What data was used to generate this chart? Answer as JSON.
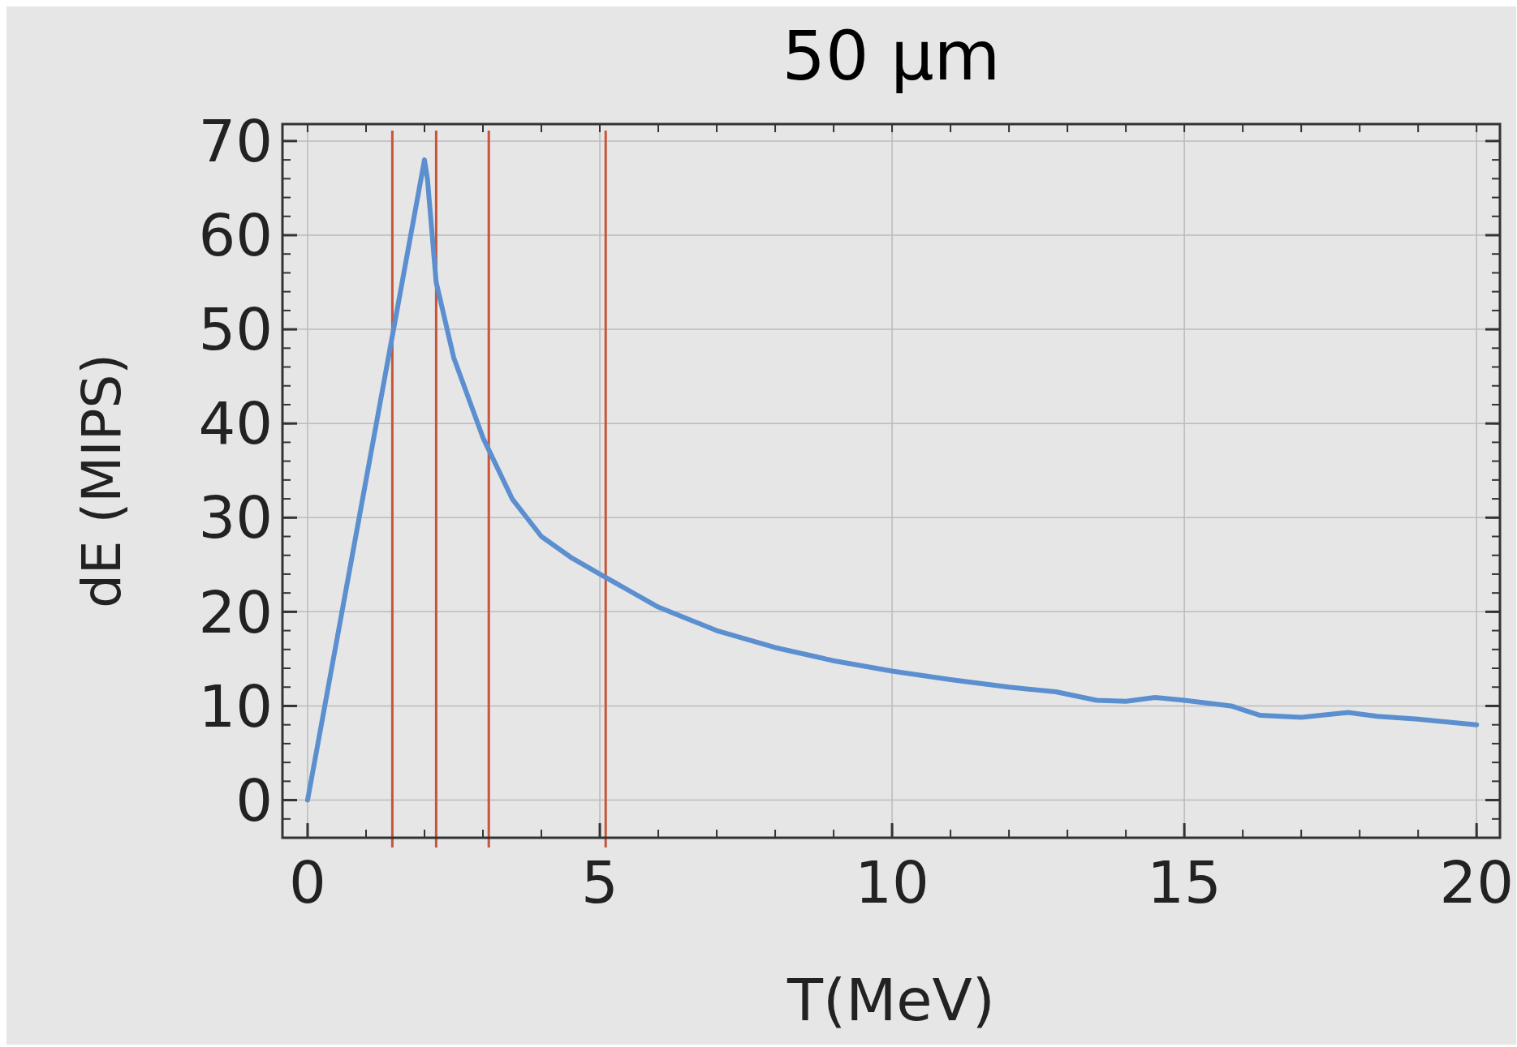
{
  "chart_data": {
    "type": "line",
    "title": "50  μm",
    "xlabel": "T(MeV)",
    "ylabel": "dE (MIPS)",
    "series": [
      {
        "color": "#5b8fcf",
        "x": [
          0,
          1,
          2.0,
          2.05,
          2.2,
          2.5,
          3,
          3.5,
          4,
          4.5,
          5,
          6,
          7,
          8,
          9,
          10,
          11,
          12,
          12.8,
          13.5,
          14,
          14.5,
          15,
          15.8,
          16.3,
          17,
          17.8,
          18.3,
          19,
          20
        ],
        "values": [
          0,
          34,
          68,
          66,
          55,
          47,
          38.5,
          32,
          28,
          25.8,
          24,
          20.5,
          18,
          16.2,
          14.8,
          13.7,
          12.8,
          12,
          11.5,
          10.6,
          10.5,
          10.9,
          10.6,
          10,
          9,
          8.8,
          9.3,
          8.9,
          8.6,
          8.0
        ]
      }
    ],
    "ref_lines": [
      {
        "axis": "x",
        "value": 1.45,
        "color": "#c8553a"
      },
      {
        "axis": "x",
        "value": 2.2,
        "color": "#c8553a"
      },
      {
        "axis": "x",
        "value": 3.1,
        "color": "#c8553a"
      },
      {
        "axis": "x",
        "value": 5.1,
        "color": "#c8553a"
      }
    ],
    "xlim": [
      -0.43,
      20.4
    ],
    "ylim": [
      -4,
      71.8
    ],
    "xticks": [
      0,
      5,
      10,
      15,
      20
    ],
    "yticks": [
      0,
      10,
      20,
      30,
      40,
      50,
      60,
      70
    ],
    "grid": true
  }
}
